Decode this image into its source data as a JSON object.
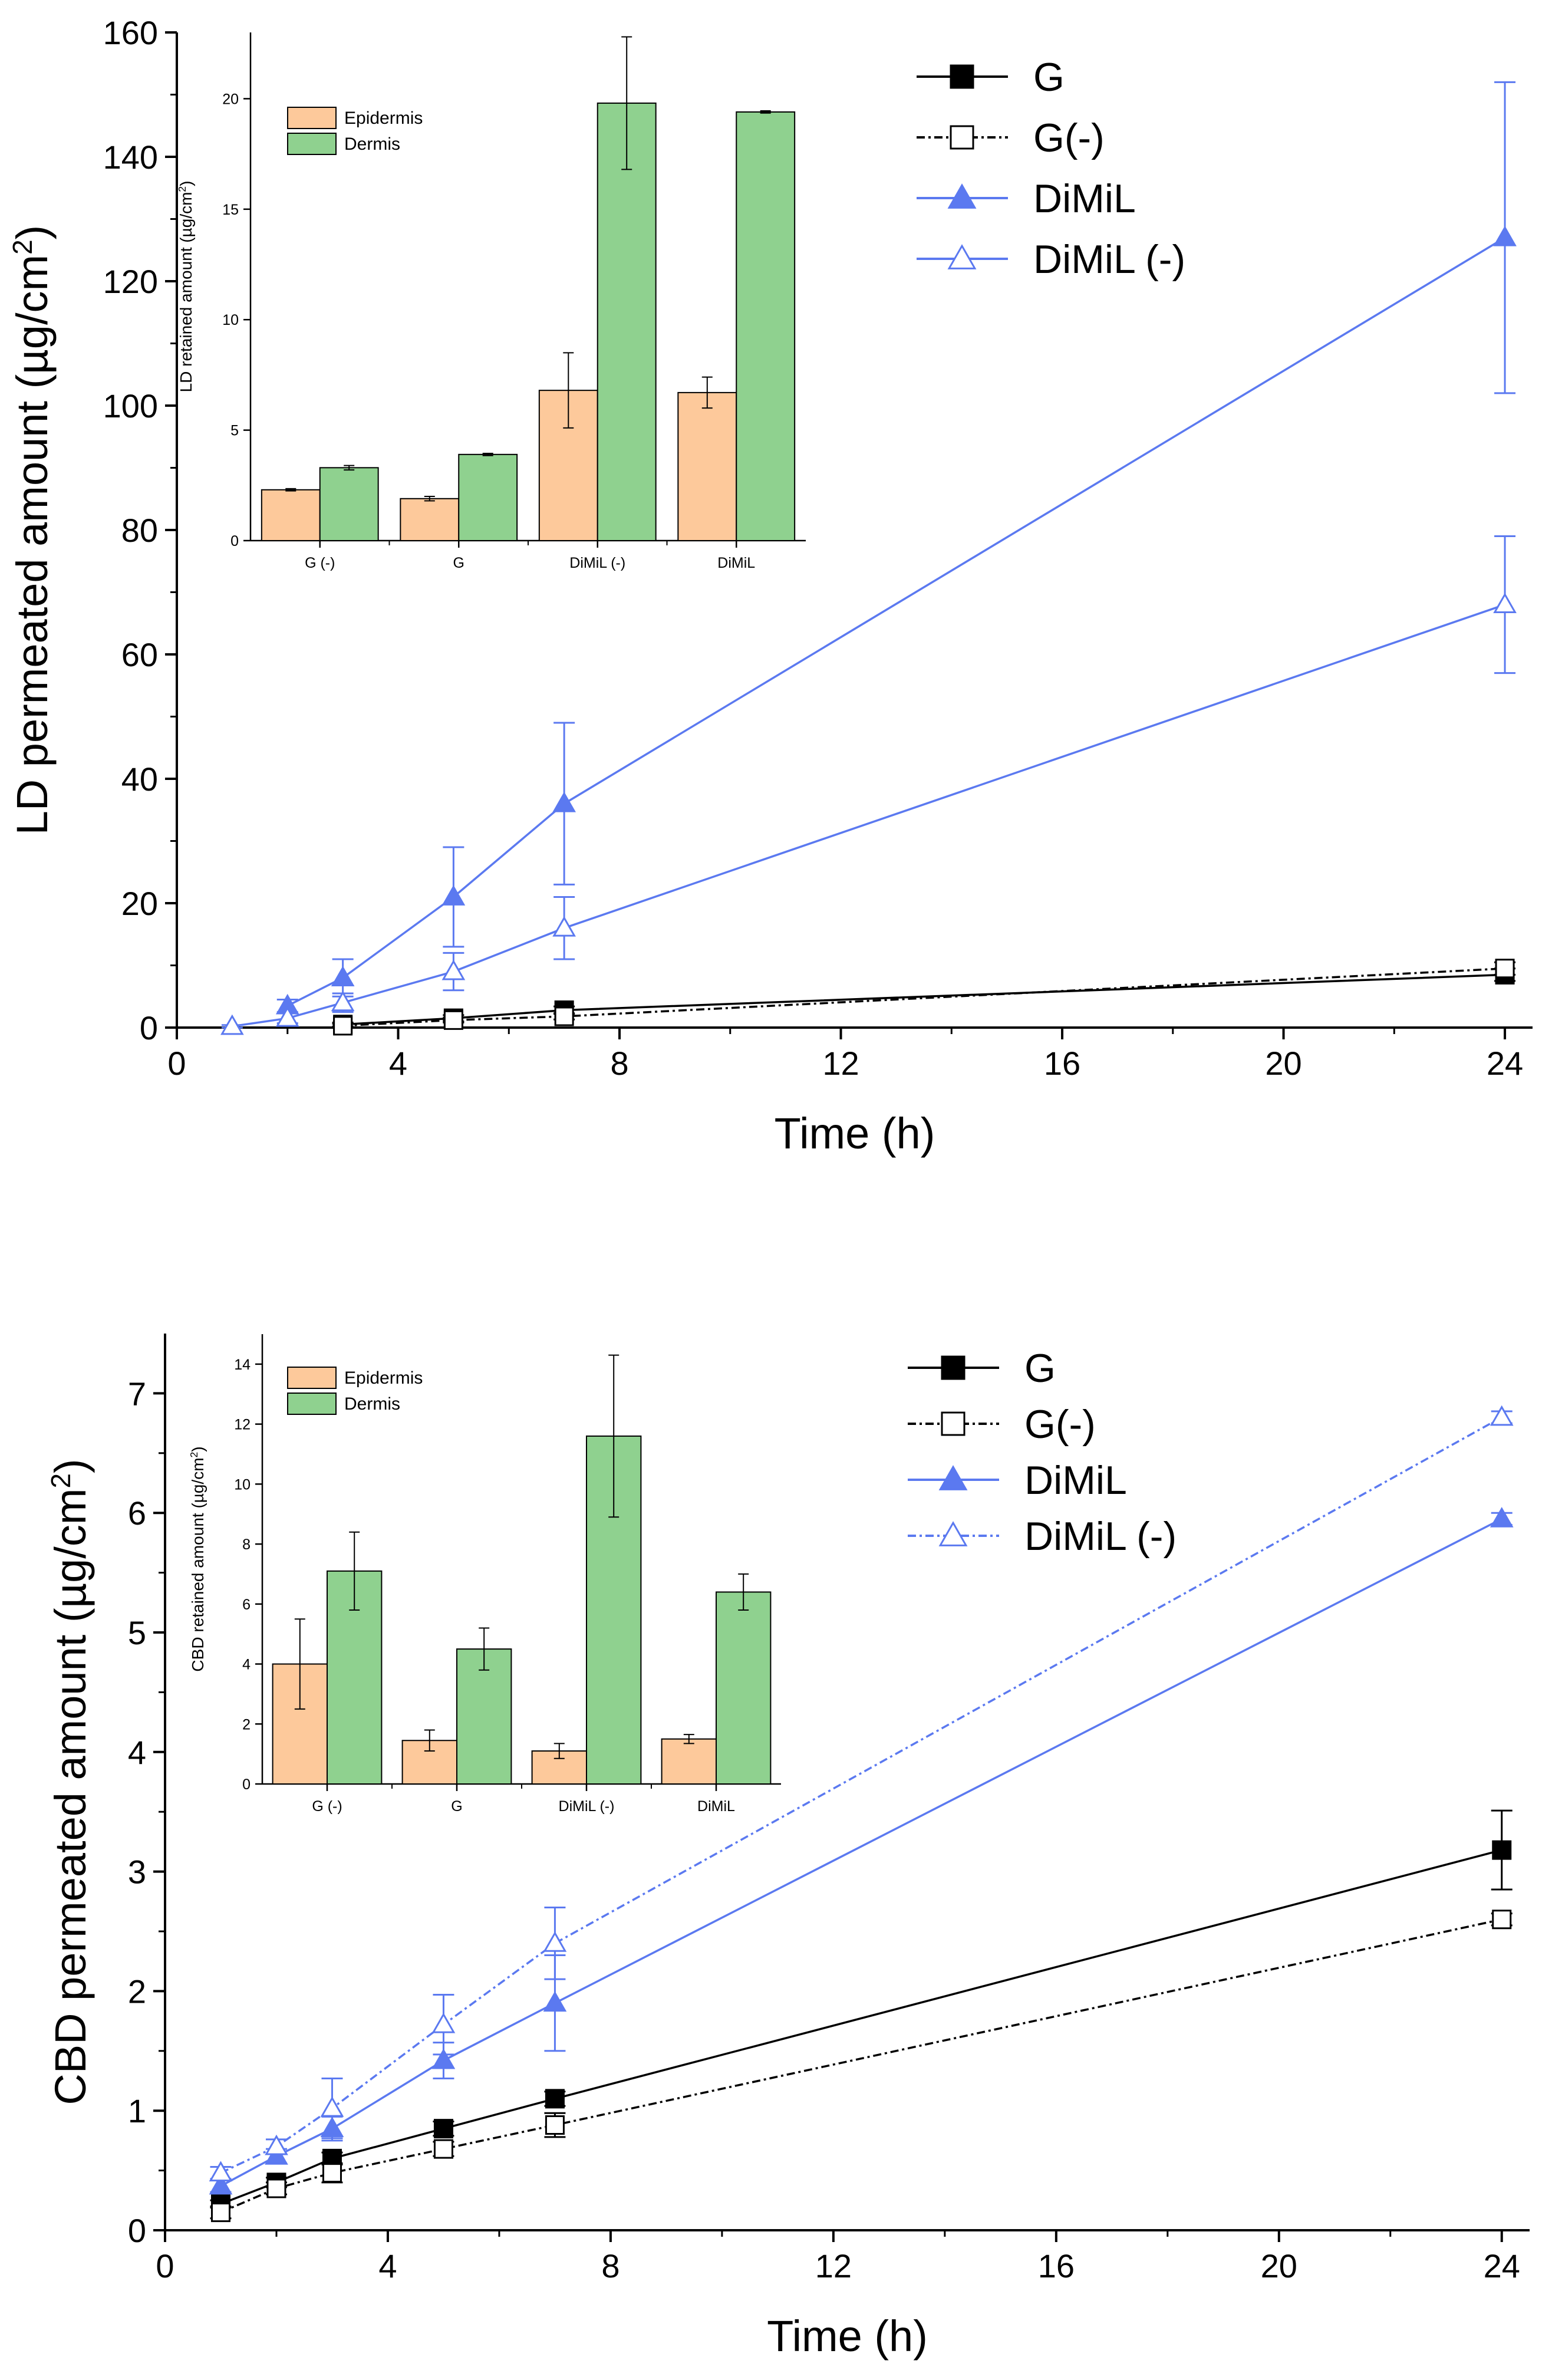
{
  "chart_data": [
    {
      "type": "line",
      "title": "",
      "xlabel": "Time (h)",
      "ylabel_main": "LD permeated amount (µg/cm",
      "ylabel_sup": "2",
      "ylabel_tail": ")",
      "xlim": [
        0,
        24.5
      ],
      "ylim": [
        0,
        160
      ],
      "xticks": [
        0,
        4,
        8,
        12,
        16,
        20,
        24
      ],
      "yticks": [
        0,
        20,
        40,
        60,
        80,
        100,
        120,
        140,
        160
      ],
      "legend_position": "top-right",
      "series": [
        {
          "name": "G",
          "label": "G",
          "marker": "square-filled",
          "line": "solid",
          "color": "#000000",
          "x": [
            3,
            5,
            7,
            24
          ],
          "y": [
            0.5,
            1.5,
            2.8,
            8.5
          ],
          "err": [
            0.3,
            0.5,
            0.6,
            1.0
          ]
        },
        {
          "name": "G(-)",
          "label": "G(-)",
          "marker": "square-open",
          "line": "dashdot",
          "color": "#000000",
          "x": [
            3,
            5,
            7,
            24
          ],
          "y": [
            0.3,
            1.2,
            1.8,
            9.5
          ],
          "err": [
            0.3,
            0.4,
            0.5,
            1.0
          ]
        },
        {
          "name": "DiMiL",
          "label": "DiMiL",
          "marker": "triangle-filled",
          "line": "solid",
          "color": "#5b79f0",
          "x": [
            2,
            3,
            5,
            7,
            24
          ],
          "y": [
            3.5,
            8,
            21,
            36,
            127
          ],
          "err": [
            1.0,
            3.0,
            8.0,
            13.0,
            25.0
          ]
        },
        {
          "name": "DiMiL (-)",
          "label": "DiMiL (-)",
          "marker": "triangle-open",
          "line": "solid",
          "color": "#5b79f0",
          "x": [
            1,
            2,
            3,
            5,
            7,
            24
          ],
          "y": [
            0.2,
            1.5,
            4,
            9,
            16,
            68
          ],
          "err": [
            0.2,
            0.8,
            1.5,
            3.0,
            5.0,
            11.0
          ]
        }
      ],
      "inset": {
        "type": "bar",
        "ylabel_main": "LD retained amount (µg/cm",
        "ylabel_sup": "2",
        "ylabel_tail": ")",
        "ylim": [
          0,
          23
        ],
        "yticks": [
          0,
          5,
          10,
          15,
          20
        ],
        "categories": [
          "G (-)",
          "G",
          "DiMiL (-)",
          "DiMiL"
        ],
        "series": [
          {
            "name": "Epidermis",
            "label": "Epidermis",
            "color": "#fdc99b",
            "values": [
              2.3,
              1.9,
              6.8,
              6.7
            ],
            "err": [
              0.05,
              0.1,
              1.7,
              0.7
            ]
          },
          {
            "name": "Dermis",
            "label": "Dermis",
            "color": "#8fd18f",
            "values": [
              3.3,
              3.9,
              19.8,
              19.4
            ],
            "err": [
              0.1,
              0.05,
              3.0,
              0.05
            ]
          }
        ]
      }
    },
    {
      "type": "line",
      "title": "",
      "xlabel": "Time (h)",
      "ylabel_main": "CBD permeated amount (µg/cm",
      "ylabel_sup": "2",
      "ylabel_tail": ")",
      "xlim": [
        0,
        24.5
      ],
      "ylim": [
        0,
        7.5
      ],
      "xticks": [
        0,
        4,
        8,
        12,
        16,
        20,
        24
      ],
      "yticks": [
        0,
        1,
        2,
        3,
        4,
        5,
        6,
        7
      ],
      "legend_position": "top-right",
      "series": [
        {
          "name": "G",
          "label": "G",
          "marker": "square-filled",
          "line": "solid",
          "color": "#000000",
          "x": [
            1,
            2,
            3,
            5,
            7,
            24
          ],
          "y": [
            0.22,
            0.4,
            0.6,
            0.85,
            1.1,
            3.18
          ],
          "err": [
            0.03,
            0.04,
            0.05,
            0.06,
            0.06,
            0.33
          ]
        },
        {
          "name": "G(-)",
          "label": "G(-)",
          "marker": "square-open",
          "line": "dashdot",
          "color": "#000000",
          "x": [
            1,
            2,
            3,
            5,
            7,
            24
          ],
          "y": [
            0.15,
            0.35,
            0.48,
            0.68,
            0.88,
            2.6
          ],
          "err": [
            0.05,
            0.05,
            0.08,
            0.06,
            0.1,
            0.05
          ]
        },
        {
          "name": "DiMiL",
          "label": "DiMiL",
          "marker": "triangle-filled",
          "line": "solid",
          "color": "#5b79f0",
          "x": [
            1,
            2,
            3,
            5,
            7,
            24
          ],
          "y": [
            0.37,
            0.62,
            0.85,
            1.42,
            1.9,
            5.95
          ],
          "err": [
            0.05,
            0.06,
            0.1,
            0.15,
            0.4,
            0.05
          ]
        },
        {
          "name": "DiMiL (-)",
          "label": "DiMiL (-)",
          "marker": "triangle-open",
          "line": "dashdot",
          "color": "#5b79f0",
          "x": [
            1,
            2,
            3,
            5,
            7,
            24
          ],
          "y": [
            0.48,
            0.7,
            1.02,
            1.72,
            2.4,
            6.8
          ],
          "err": [
            0.05,
            0.06,
            0.25,
            0.25,
            0.3,
            0.05
          ]
        }
      ],
      "inset": {
        "type": "bar",
        "ylabel_main": "CBD retained amount (µg/cm",
        "ylabel_sup": "2",
        "ylabel_tail": ")",
        "ylim": [
          0,
          15
        ],
        "yticks": [
          0,
          2,
          4,
          6,
          8,
          10,
          12,
          14
        ],
        "categories": [
          "G (-)",
          "G",
          "DiMiL (-)",
          "DiMiL"
        ],
        "series": [
          {
            "name": "Epidermis",
            "label": "Epidermis",
            "color": "#fdc99b",
            "values": [
              4.0,
              1.45,
              1.1,
              1.5
            ],
            "err": [
              1.5,
              0.35,
              0.25,
              0.15
            ]
          },
          {
            "name": "Dermis",
            "label": "Dermis",
            "color": "#8fd18f",
            "values": [
              7.1,
              4.5,
              11.6,
              6.4
            ],
            "err": [
              1.3,
              0.7,
              2.7,
              0.6
            ]
          }
        ]
      }
    }
  ]
}
